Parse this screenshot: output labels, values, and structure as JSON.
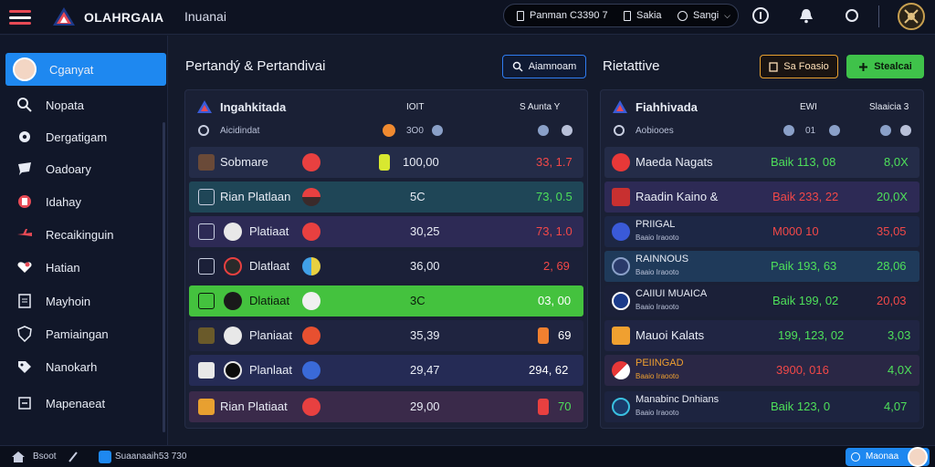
{
  "topbar": {
    "brand": "OLAHRGAIA",
    "subtitle": "Inuanai",
    "pill_item1": "Panman  C3390 7",
    "pill_item2": "Sakia",
    "pill_item3": "Sangi"
  },
  "sidebar": {
    "items": [
      {
        "label": "Cganyat",
        "icon": "avatar-icon"
      },
      {
        "label": "Nopata",
        "icon": "search-icon"
      },
      {
        "label": "Dergatigam",
        "icon": "gear-icon"
      },
      {
        "label": "Oadoary",
        "icon": "chat-icon"
      },
      {
        "label": "Idahay",
        "icon": "badge-icon"
      },
      {
        "label": "Recaikinguin",
        "icon": "plane-icon"
      },
      {
        "label": "Hatian",
        "icon": "heart-icon"
      },
      {
        "label": "Mayhoin",
        "icon": "document-icon"
      },
      {
        "label": "Pamiaingan",
        "icon": "shield-icon"
      },
      {
        "label": "Nanokarh",
        "icon": "tag-icon"
      },
      {
        "label": "Mapenaeat",
        "icon": "list-icon"
      }
    ]
  },
  "left_section": {
    "title": "Pertandý & Pertandivai",
    "search_button": "Aiamnoam",
    "panel": {
      "header_title": "Ingahkitada",
      "header_col2": "IOIT",
      "header_col3": "S Aunta Y",
      "sub_title": "Aicidindat",
      "sub_col2": "3O0",
      "rows": [
        {
          "name": "Sobmare",
          "value": "100,00",
          "score": "33, 1.7",
          "score_color": "#f24848"
        },
        {
          "name": "Rian  Platlaan",
          "value": "5C",
          "score": "73, 0.5",
          "score_color": "#4ee05a"
        },
        {
          "name": "Platiaat",
          "value": "30,25",
          "score": "73, 1.0",
          "score_color": "#f24848"
        },
        {
          "name": "Dlatlaat",
          "value": "36,00",
          "score": "2, 69",
          "score_color": "#f24848"
        },
        {
          "name": "Dlatiaat",
          "value": "3C",
          "score": "03, 00",
          "score_color": "#ffffff"
        },
        {
          "name": "Planiaat",
          "value": "35,39",
          "score": "69",
          "score_color": "#ffffff"
        },
        {
          "name": "Planlaat",
          "value": "29,47",
          "score": "294, 62",
          "score_color": "#ffffff"
        },
        {
          "name": "Rian  Platiaat",
          "value": "29,00",
          "score": "70",
          "score_color": "#4ee05a"
        }
      ]
    }
  },
  "right_section": {
    "title": "Rietattive",
    "button_outline": "Sa Foasio",
    "button_green": "Stealcai",
    "panel": {
      "header_title": "Fiahhivada",
      "header_col2": "EWI",
      "header_col3": "Slaaicia 3",
      "sub_title": "Aobiooes",
      "sub_col2": "01",
      "rows": [
        {
          "name": "Maeda Nagats",
          "sub": "",
          "odds": "Baik 113, 08",
          "odds_color": "#4ee05a",
          "pct": "8,0X",
          "pct_color": "#4ee05a"
        },
        {
          "name": "Raadin Kaino &",
          "sub": "",
          "odds": "Baik 233, 22",
          "odds_color": "#f24848",
          "pct": "20,0X",
          "pct_color": "#4ee05a"
        },
        {
          "name": "PRIIGAL",
          "sub": "Baaio Iraooto",
          "odds": "M000 10",
          "odds_color": "#f24848",
          "pct": "35,05",
          "pct_color": "#f24848"
        },
        {
          "name": "RAINNOUS",
          "sub": "Baaio Iraooto",
          "odds": "Paik 193, 63",
          "odds_color": "#4ee05a",
          "pct": "28,06",
          "pct_color": "#4ee05a"
        },
        {
          "name": "CAIIUI MUAICA",
          "sub": "Baaio Iraooto",
          "odds": "Baik 199, 02",
          "odds_color": "#4ee05a",
          "pct": "20,03",
          "pct_color": "#f24848"
        },
        {
          "name": "Mauoi Kalats",
          "sub": "",
          "odds": "199, 123, 02",
          "odds_color": "#4ee05a",
          "pct": "3,03",
          "pct_color": "#4ee05a"
        },
        {
          "name": "PEIINGAD",
          "sub": "Baaio Iraooto",
          "odds": "3900, 016",
          "odds_color": "#f24848",
          "pct": "4,0X",
          "pct_color": "#4ee05a"
        },
        {
          "name": "Manabinc Dnhians",
          "sub": "Baaio Iraooto",
          "odds": "Baik 123, 0",
          "odds_color": "#4ee05a",
          "pct": "4,07",
          "pct_color": "#4ee05a"
        }
      ]
    }
  },
  "footer": {
    "home_label": "Bsoot",
    "status_text": "Suaanaaih53 730",
    "help_button": "Maonaa"
  },
  "colors": {
    "accent_blue": "#1e88f0",
    "accent_green": "#3fc24a",
    "danger_red": "#f24848",
    "success_green": "#4ee05a"
  }
}
